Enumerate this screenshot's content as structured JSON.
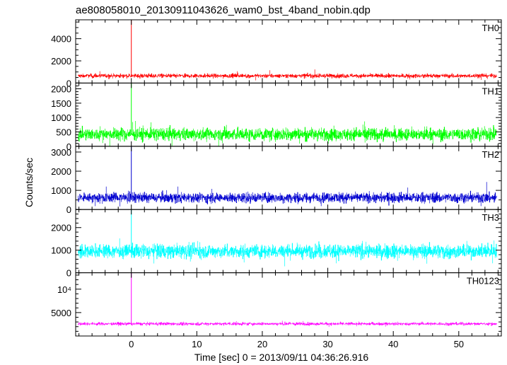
{
  "chart_data": {
    "type": "line",
    "title": "ae808058010_20130911043626_wam0_bst_4band_nobin.qdp",
    "xlabel": "Time [sec] 0 = 2013/09/11 04:36:26.916",
    "ylabel": "Counts/sec",
    "xlim": [
      -8.5,
      56.5
    ],
    "x_ticks": [
      0,
      10,
      20,
      30,
      40,
      50
    ],
    "x_tick_labels": [
      "0",
      "10",
      "20",
      "30",
      "40",
      "50"
    ],
    "x_minor_step": 2,
    "trigger_time": 0,
    "panels": [
      {
        "name": "TH0",
        "color": "#ff0000",
        "ylim": [
          0,
          5700
        ],
        "y_ticks": [
          0,
          2000,
          4000
        ],
        "y_tick_labels": [
          "0",
          "2000",
          "4000"
        ],
        "y_minor_step": 500,
        "baseline": 650,
        "noise": 190,
        "peak": 5700,
        "x_range": [
          -8.1,
          55.8
        ]
      },
      {
        "name": "TH1",
        "color": "#00ff00",
        "ylim": [
          0,
          2200
        ],
        "y_ticks": [
          0,
          500,
          1000,
          1500,
          2000
        ],
        "y_tick_labels": [
          "0",
          "500",
          "1000",
          "1500",
          "2000"
        ],
        "y_minor_step": 100,
        "baseline": 420,
        "noise": 220,
        "peak": 2200,
        "x_range": [
          -8.1,
          55.8
        ]
      },
      {
        "name": "TH2",
        "color": "#0000d0",
        "ylim": [
          0,
          3300
        ],
        "y_ticks": [
          0,
          1000,
          2000,
          3000
        ],
        "y_tick_labels": [
          "0",
          "1000",
          "2000",
          "3000"
        ],
        "y_minor_step": 500,
        "baseline": 620,
        "noise": 260,
        "peak": 3300,
        "x_range": [
          -8.1,
          55.8
        ]
      },
      {
        "name": "TH3",
        "color": "#00ffff",
        "ylim": [
          0,
          2800
        ],
        "y_ticks": [
          0,
          1000,
          2000
        ],
        "y_tick_labels": [
          "0",
          "1000",
          "2000"
        ],
        "y_minor_step": 200,
        "baseline": 950,
        "noise": 300,
        "peak": 2800,
        "x_range": [
          -8.1,
          55.8
        ]
      },
      {
        "name": "TH0123",
        "color": "#ff00ff",
        "ylim": [
          0,
          13500
        ],
        "y_ticks": [
          5000,
          10000
        ],
        "y_tick_labels": [
          "5000",
          "10⁴"
        ],
        "y_minor_step": 1000,
        "baseline": 2600,
        "noise": 330,
        "peak": 13500,
        "x_range": [
          -8.1,
          55.8
        ]
      }
    ]
  }
}
